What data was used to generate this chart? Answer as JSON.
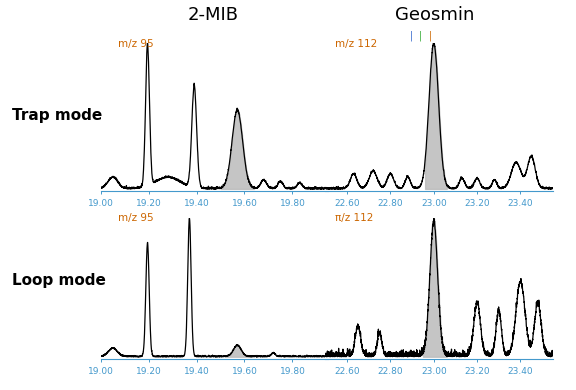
{
  "title_2mib": "2-MIB",
  "title_geosmin": "Geosmin",
  "label_mz95": "m/z 95",
  "label_mz112": "m/z 112",
  "label_mz112_loop": "π/z 112",
  "label_trap": "Trap mode",
  "label_loop": "Loop mode",
  "color_mz95": "#cc6600",
  "color_mz112": "#cc6600",
  "color_geosmin_ticks": [
    "#3366cc",
    "#33aa33",
    "#cc6600"
  ],
  "fill_color": "#bbbbbb",
  "line_color": "#000000",
  "axis_color": "#4499cc",
  "bg_color": "#ffffff"
}
